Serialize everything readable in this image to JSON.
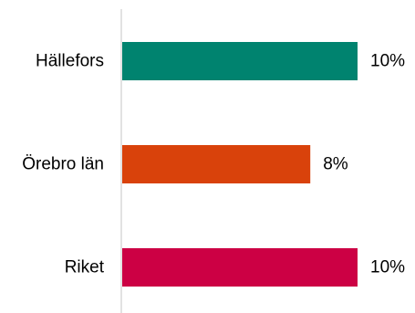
{
  "chart_data": {
    "type": "bar",
    "orientation": "horizontal",
    "categories": [
      "Hällefors",
      "Örebro län",
      "Riket"
    ],
    "values": [
      10,
      8,
      10
    ],
    "value_labels": [
      "10%",
      "8%",
      "10%"
    ],
    "colors": [
      "#00836f",
      "#d9420b",
      "#cc0044"
    ],
    "axis_color": "#d9d9d9",
    "title": "",
    "xlabel": "",
    "ylabel": "",
    "xlim": [
      0,
      10
    ],
    "grid": false,
    "legend": false
  }
}
